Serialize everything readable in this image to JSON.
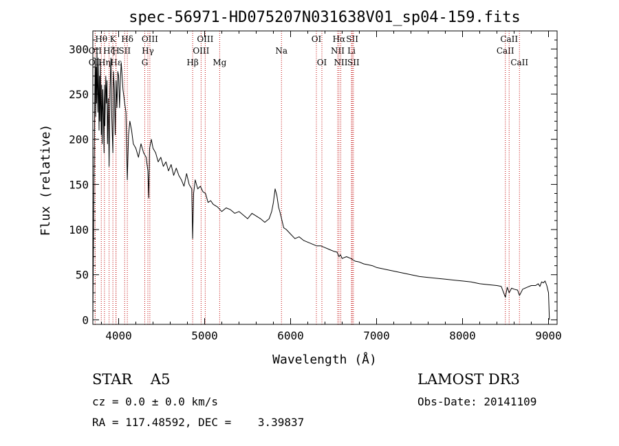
{
  "chart_data": {
    "type": "line",
    "title": "spec-56971-HD075207N031638V01_sp04-159.fits",
    "xlabel": "Wavelength (Å)",
    "ylabel": "Flux (relative)",
    "xlim": [
      3700,
      9100
    ],
    "ylim": [
      -5,
      320
    ],
    "x_ticks": [
      4000,
      5000,
      6000,
      7000,
      8000,
      9000
    ],
    "y_ticks": [
      0,
      50,
      100,
      150,
      200,
      250,
      300
    ],
    "grid": false,
    "line_color": "#000000",
    "marker_color": "#c00000",
    "series": [
      {
        "name": "flux",
        "x": [
          3700,
          3705,
          3712,
          3718,
          3722,
          3728,
          3733,
          3738,
          3742,
          3748,
          3752,
          3758,
          3762,
          3768,
          3772,
          3778,
          3782,
          3788,
          3792,
          3798,
          3802,
          3808,
          3815,
          3822,
          3830,
          3835,
          3840,
          3850,
          3858,
          3865,
          3870,
          3880,
          3889,
          3900,
          3910,
          3920,
          3933,
          3940,
          3950,
          3960,
          3970,
          3980,
          3990,
          4000,
          4010,
          4020,
          4030,
          4050,
          4070,
          4085,
          4101,
          4115,
          4130,
          4150,
          4170,
          4200,
          4230,
          4260,
          4290,
          4320,
          4340,
          4350,
          4360,
          4380,
          4400,
          4430,
          4460,
          4490,
          4520,
          4550,
          4580,
          4610,
          4640,
          4670,
          4700,
          4730,
          4760,
          4790,
          4820,
          4850,
          4861,
          4872,
          4890,
          4920,
          4950,
          4980,
          5010,
          5040,
          5070,
          5100,
          5150,
          5200,
          5250,
          5300,
          5350,
          5400,
          5450,
          5500,
          5550,
          5600,
          5650,
          5700,
          5750,
          5780,
          5800,
          5820,
          5840,
          5860,
          5880,
          5900,
          5920,
          5950,
          6000,
          6050,
          6100,
          6150,
          6200,
          6250,
          6300,
          6350,
          6400,
          6450,
          6500,
          6540,
          6563,
          6580,
          6600,
          6650,
          6700,
          6750,
          6800,
          6850,
          6900,
          6950,
          7000,
          7100,
          7200,
          7300,
          7400,
          7500,
          7600,
          7700,
          7800,
          7900,
          8000,
          8100,
          8200,
          8300,
          8400,
          8450,
          8498,
          8520,
          8542,
          8570,
          8600,
          8640,
          8662,
          8700,
          8750,
          8800,
          8850,
          8880,
          8900,
          8920,
          8940,
          8960,
          8980,
          9000,
          9010
        ],
        "y": [
          0,
          60,
          140,
          200,
          250,
          290,
          225,
          280,
          240,
          300,
          260,
          230,
          290,
          250,
          210,
          270,
          220,
          285,
          240,
          205,
          260,
          195,
          255,
          230,
          185,
          260,
          215,
          270,
          240,
          265,
          195,
          245,
          170,
          255,
          290,
          225,
          185,
          275,
          255,
          205,
          265,
          235,
          275,
          270,
          235,
          265,
          285,
          255,
          240,
          230,
          155,
          205,
          220,
          210,
          195,
          190,
          180,
          195,
          185,
          180,
          165,
          135,
          190,
          200,
          190,
          185,
          175,
          180,
          170,
          175,
          165,
          172,
          160,
          168,
          160,
          155,
          148,
          162,
          150,
          145,
          90,
          140,
          155,
          145,
          148,
          142,
          140,
          130,
          132,
          128,
          125,
          120,
          124,
          122,
          118,
          120,
          116,
          112,
          118,
          115,
          112,
          108,
          112,
          120,
          130,
          145,
          138,
          125,
          118,
          110,
          102,
          100,
          95,
          90,
          92,
          88,
          86,
          84,
          82,
          82,
          80,
          78,
          76,
          75,
          70,
          72,
          68,
          70,
          68,
          65,
          64,
          62,
          61,
          60,
          58,
          56,
          54,
          52,
          50,
          48,
          47,
          46,
          45,
          44,
          43,
          42,
          40,
          39,
          38,
          37,
          25,
          36,
          30,
          35,
          34,
          33,
          27,
          34,
          36,
          38,
          38,
          40,
          37,
          42,
          41,
          43,
          38,
          30,
          0
        ]
      }
    ],
    "line_markers": [
      {
        "name": "OII",
        "wavelength": 3727,
        "row": 1
      },
      {
        "name": "OII",
        "wavelength": 3727,
        "row": 2
      },
      {
        "name": "Hθ",
        "wavelength": 3798,
        "row": 0
      },
      {
        "name": "Hη",
        "wavelength": 3835,
        "row": 2
      },
      {
        "name": "Hζ",
        "wavelength": 3889,
        "row": 1
      },
      {
        "name": "K",
        "wavelength": 3933,
        "row": 0
      },
      {
        "name": "Hε",
        "wavelength": 3970,
        "row": 2
      },
      {
        "name": "H",
        "wavelength": 3968,
        "row": 1
      },
      {
        "name": "SII",
        "wavelength": 4070,
        "row": 1
      },
      {
        "name": "Hδ",
        "wavelength": 4101,
        "row": 0
      },
      {
        "name": "G",
        "wavelength": 4304,
        "row": 2
      },
      {
        "name": "Hγ",
        "wavelength": 4340,
        "row": 1
      },
      {
        "name": "OIII",
        "wavelength": 4363,
        "row": 0
      },
      {
        "name": "Hβ",
        "wavelength": 4861,
        "row": 2
      },
      {
        "name": "OIII",
        "wavelength": 4959,
        "row": 1
      },
      {
        "name": "OIII",
        "wavelength": 5007,
        "row": 0
      },
      {
        "name": "Mg",
        "wavelength": 5175,
        "row": 2
      },
      {
        "name": "Na",
        "wavelength": 5894,
        "row": 1
      },
      {
        "name": "OI",
        "wavelength": 6300,
        "row": 0
      },
      {
        "name": "OI",
        "wavelength": 6364,
        "row": 2
      },
      {
        "name": "NII",
        "wavelength": 6548,
        "row": 1
      },
      {
        "name": "Hα",
        "wavelength": 6563,
        "row": 0
      },
      {
        "name": "NII",
        "wavelength": 6584,
        "row": 2
      },
      {
        "name": "Li",
        "wavelength": 6708,
        "row": 1
      },
      {
        "name": "SII",
        "wavelength": 6717,
        "row": 0
      },
      {
        "name": "SII",
        "wavelength": 6731,
        "row": 2
      },
      {
        "name": "CaII",
        "wavelength": 8498,
        "row": 1
      },
      {
        "name": "CaII",
        "wavelength": 8542,
        "row": 0
      },
      {
        "name": "CaII",
        "wavelength": 8662,
        "row": 2
      }
    ]
  },
  "footer": {
    "object_class": "STAR    A5",
    "survey": "LAMOST DR3",
    "redshift": "cz = 0.0 ± 0.0 km/s",
    "obs_date": "Obs-Date: 20141109",
    "coordinates": "RA = 117.48592, DEC =    3.39837"
  }
}
